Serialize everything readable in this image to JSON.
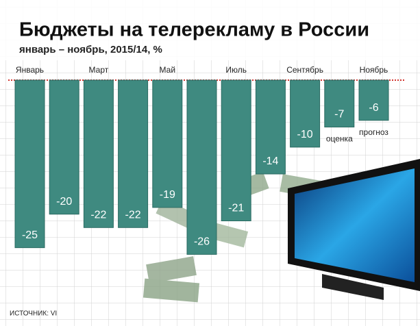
{
  "chart_data": {
    "type": "bar",
    "title": "Бюджеты на телерекламу в России",
    "subtitle": "январь – ноябрь, 2015/14, %",
    "categories": [
      "Январь",
      null,
      "Март",
      null,
      "Май",
      null,
      "Июль",
      null,
      "Сентябрь",
      null,
      "Ноябрь"
    ],
    "values": [
      -25,
      -20,
      -22,
      -22,
      -19,
      -26,
      -21,
      -14,
      -10,
      -7,
      -6
    ],
    "color": "#3f8a80",
    "ylim": [
      -28,
      0
    ],
    "annotations": [
      "оценка",
      "прогноз"
    ],
    "source": "ИСТОЧНИК: VI"
  }
}
